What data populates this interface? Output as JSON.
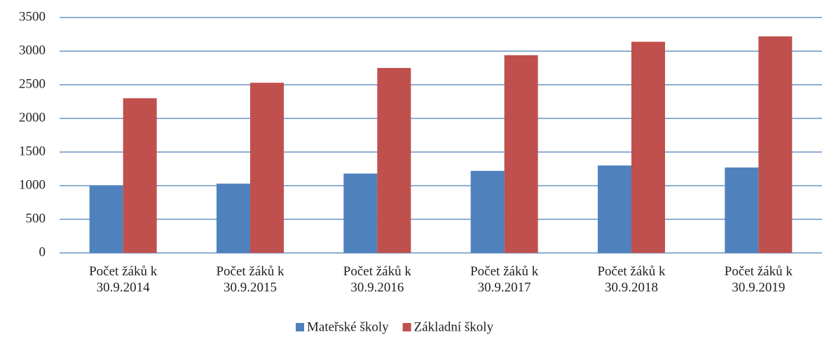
{
  "chart_data": {
    "type": "bar",
    "categories": [
      "Počet žáků k\n30.9.2014",
      "Počet žáků k\n30.9.2015",
      "Počet žáků k\n30.9.2016",
      "Počet žáků k\n30.9.2017",
      "Počet žáků k\n30.9.2018",
      "Počet žáků k\n30.9.2019"
    ],
    "series": [
      {
        "name": "Mateřské školy",
        "color": "#4f81bd",
        "values": [
          1000,
          1030,
          1180,
          1220,
          1300,
          1270
        ]
      },
      {
        "name": "Základní školy",
        "color": "#c0504d",
        "values": [
          2300,
          2530,
          2750,
          2940,
          3140,
          3220
        ]
      }
    ],
    "ylim": [
      0,
      3500
    ],
    "yticks": [
      0,
      500,
      1000,
      1500,
      2000,
      2500,
      3000,
      3500
    ],
    "grid": true,
    "legend": "bottom"
  }
}
